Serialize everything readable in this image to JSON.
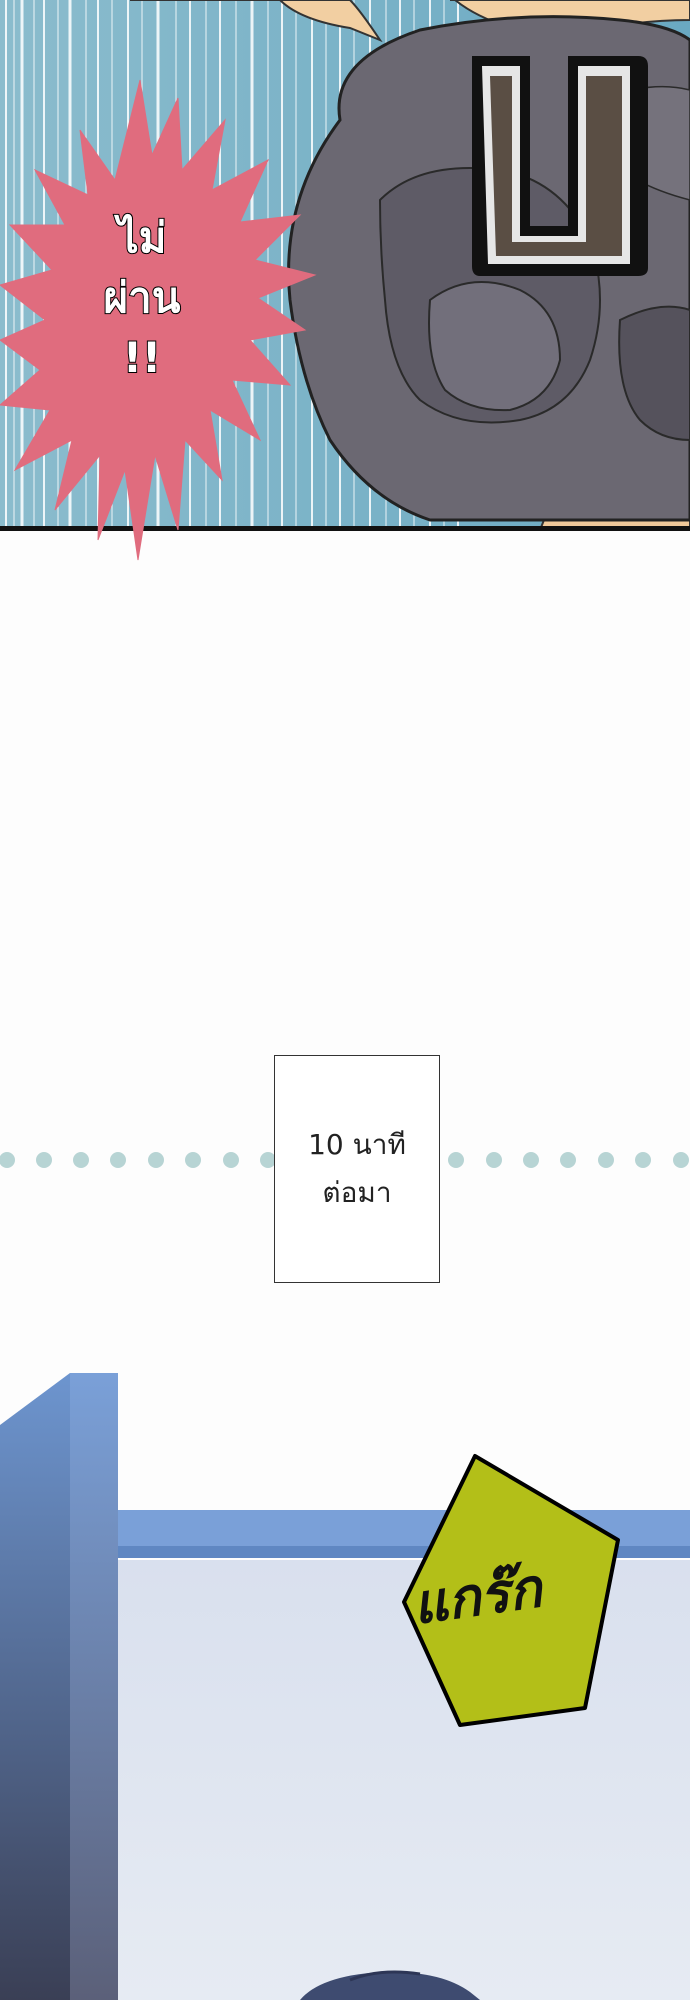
{
  "top_panel": {
    "burst_text_lines": [
      "ไม่",
      "ผ่าน",
      "!!"
    ],
    "grade_letter": "บ",
    "burst_color": "#e06c7e",
    "background_color": "#7fb2c6"
  },
  "caption": {
    "line1": "10 นาที",
    "line2": "ต่อมา"
  },
  "bottom_panel": {
    "sfx_text": "แกร๊ก",
    "sfx_color": "#b3bf18",
    "door_color": "#6f96cf"
  }
}
